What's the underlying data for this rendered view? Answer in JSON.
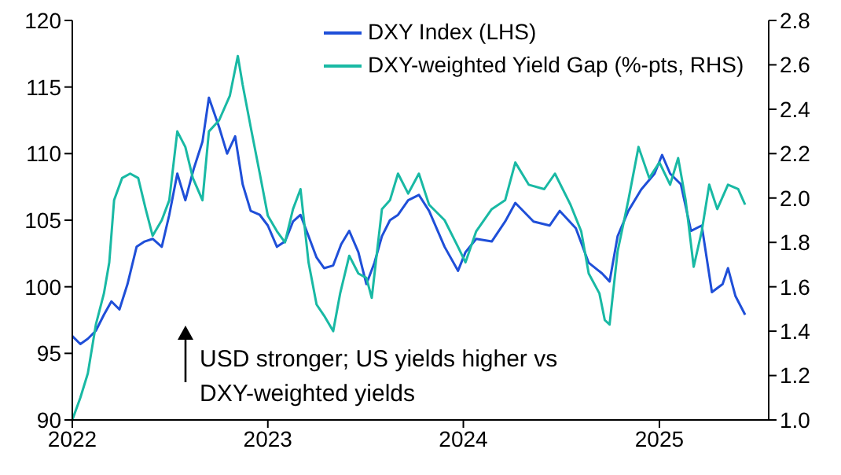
{
  "chart_data": {
    "type": "line",
    "series": [
      {
        "name": "DXY Index (LHS)",
        "color": "#1f4fd8",
        "axis": "y",
        "x": [
          "2022-01-01",
          "2022-01-16",
          "2022-01-30",
          "2022-02-14",
          "2022-03-01",
          "2022-03-15",
          "2022-03-30",
          "2022-04-14",
          "2022-05-01",
          "2022-05-16",
          "2022-05-31",
          "2022-06-17",
          "2022-07-01",
          "2022-07-16",
          "2022-07-31",
          "2022-08-16",
          "2022-09-01",
          "2022-09-13",
          "2022-10-02",
          "2022-10-17",
          "2022-11-01",
          "2022-11-15",
          "2022-11-30",
          "2022-12-17",
          "2023-01-01",
          "2023-01-18",
          "2023-02-02",
          "2023-02-17",
          "2023-03-03",
          "2023-03-18",
          "2023-04-02",
          "2023-04-16",
          "2023-05-03",
          "2023-05-18",
          "2023-06-02",
          "2023-06-19",
          "2023-07-04",
          "2023-07-19",
          "2023-08-02",
          "2023-08-17",
          "2023-09-01",
          "2023-09-20",
          "2023-10-10",
          "2023-10-29",
          "2023-11-27",
          "2023-12-22",
          "2024-01-05",
          "2024-01-25",
          "2024-02-23",
          "2024-03-19",
          "2024-04-07",
          "2024-05-11",
          "2024-06-10",
          "2024-06-29",
          "2024-07-29",
          "2024-08-22",
          "2024-09-16",
          "2024-09-30",
          "2024-10-15",
          "2024-11-04",
          "2024-11-28",
          "2024-12-23",
          "2025-01-06",
          "2025-01-21",
          "2025-02-10",
          "2025-03-01",
          "2025-03-21",
          "2025-04-09",
          "2025-04-29",
          "2025-05-09",
          "2025-05-23",
          "2025-06-10"
        ],
        "values": [
          96.3,
          95.7,
          96.1,
          96.7,
          97.9,
          98.9,
          98.3,
          100.2,
          103,
          103.4,
          103.6,
          103,
          105.4,
          108.5,
          106.5,
          108.9,
          110.9,
          114.2,
          112,
          110,
          111.3,
          107.7,
          105.7,
          105.4,
          104.6,
          103,
          103.4,
          104.9,
          105.4,
          103.8,
          102.2,
          101.4,
          101.6,
          103.2,
          104.2,
          102.6,
          100.2,
          101.8,
          103.8,
          105,
          105.4,
          106.5,
          106.9,
          105.7,
          103,
          101.2,
          102.6,
          103.6,
          103.4,
          104.9,
          106.3,
          104.9,
          104.6,
          105.7,
          104.4,
          101.8,
          101,
          100.4,
          103.8,
          105.7,
          107.3,
          108.5,
          109.9,
          108.5,
          107.7,
          104.2,
          104.6,
          99.6,
          100.2,
          101.4,
          99.3,
          97.9
        ]
      },
      {
        "name": "DXY-weighted Yield Gap (%-pts, RHS)",
        "color": "#19b9a4",
        "axis": "y2",
        "x": [
          "2022-01-01",
          "2022-01-16",
          "2022-01-30",
          "2022-02-14",
          "2022-03-01",
          "2022-03-11",
          "2022-03-20",
          "2022-04-04",
          "2022-04-19",
          "2022-05-04",
          "2022-05-18",
          "2022-05-31",
          "2022-06-17",
          "2022-07-01",
          "2022-07-16",
          "2022-07-31",
          "2022-08-14",
          "2022-09-01",
          "2022-09-13",
          "2022-10-02",
          "2022-10-22",
          "2022-11-06",
          "2022-11-15",
          "2022-11-30",
          "2022-12-17",
          "2023-01-01",
          "2023-01-18",
          "2023-02-02",
          "2023-02-17",
          "2023-03-03",
          "2023-03-18",
          "2023-04-02",
          "2023-04-16",
          "2023-05-03",
          "2023-05-16",
          "2023-06-02",
          "2023-06-19",
          "2023-07-04",
          "2023-07-14",
          "2023-08-02",
          "2023-08-17",
          "2023-09-01",
          "2023-09-20",
          "2023-10-10",
          "2023-10-29",
          "2023-11-27",
          "2023-12-22",
          "2024-01-05",
          "2024-01-25",
          "2024-02-23",
          "2024-03-19",
          "2024-04-07",
          "2024-05-02",
          "2024-05-31",
          "2024-06-20",
          "2024-07-19",
          "2024-08-08",
          "2024-08-22",
          "2024-09-11",
          "2024-09-21",
          "2024-09-30",
          "2024-10-15",
          "2024-11-04",
          "2024-11-23",
          "2024-12-13",
          "2025-01-01",
          "2025-01-21",
          "2025-02-05",
          "2025-02-19",
          "2025-03-06",
          "2025-03-21",
          "2025-04-04",
          "2025-04-19",
          "2025-05-09",
          "2025-05-28",
          "2025-06-10"
        ],
        "values": [
          1.0,
          1.1,
          1.21,
          1.43,
          1.57,
          1.71,
          1.99,
          2.09,
          2.11,
          2.09,
          1.95,
          1.83,
          1.9,
          1.99,
          2.3,
          2.23,
          2.09,
          1.99,
          2.3,
          2.35,
          2.46,
          2.64,
          2.51,
          2.32,
          2.11,
          1.92,
          1.85,
          1.8,
          1.95,
          2.04,
          1.71,
          1.52,
          1.47,
          1.4,
          1.57,
          1.74,
          1.66,
          1.64,
          1.55,
          1.95,
          1.99,
          2.11,
          2.02,
          2.11,
          1.97,
          1.9,
          1.78,
          1.71,
          1.85,
          1.95,
          1.99,
          2.16,
          2.06,
          2.04,
          2.11,
          1.97,
          1.85,
          1.66,
          1.57,
          1.45,
          1.43,
          1.76,
          1.99,
          2.23,
          2.09,
          2.16,
          2.06,
          2.18,
          1.99,
          1.69,
          1.85,
          2.06,
          1.95,
          2.06,
          2.04,
          1.97
        ]
      }
    ],
    "xlim": [
      "2022-01-01",
      "2025-07-24"
    ],
    "xticks": [
      "2022",
      "2023",
      "2024",
      "2025"
    ],
    "ylim": [
      90,
      120
    ],
    "yticks": [
      90,
      95,
      100,
      105,
      110,
      115,
      120
    ],
    "y2lim": [
      1.0,
      2.8
    ],
    "y2ticks": [
      {
        "value": 1.0,
        "label": "1.0"
      },
      {
        "value": 1.2,
        "label": "1.2"
      },
      {
        "value": 1.4,
        "label": "1.4"
      },
      {
        "value": 1.6,
        "label": "1.6"
      },
      {
        "value": 1.8,
        "label": "1.8"
      },
      {
        "value": 2.0,
        "label": "2.0"
      },
      {
        "value": 2.2,
        "label": "2.2"
      },
      {
        "value": 2.4,
        "label": "2.4"
      },
      {
        "value": 2.6,
        "label": "2.6"
      },
      {
        "value": 2.8,
        "label": "2.8"
      }
    ],
    "annotations": [
      "USD stronger; US yields higher vs DXY-weighted yields"
    ],
    "legend": "top",
    "grid": false,
    "marker": "none",
    "line_style": "solid"
  }
}
